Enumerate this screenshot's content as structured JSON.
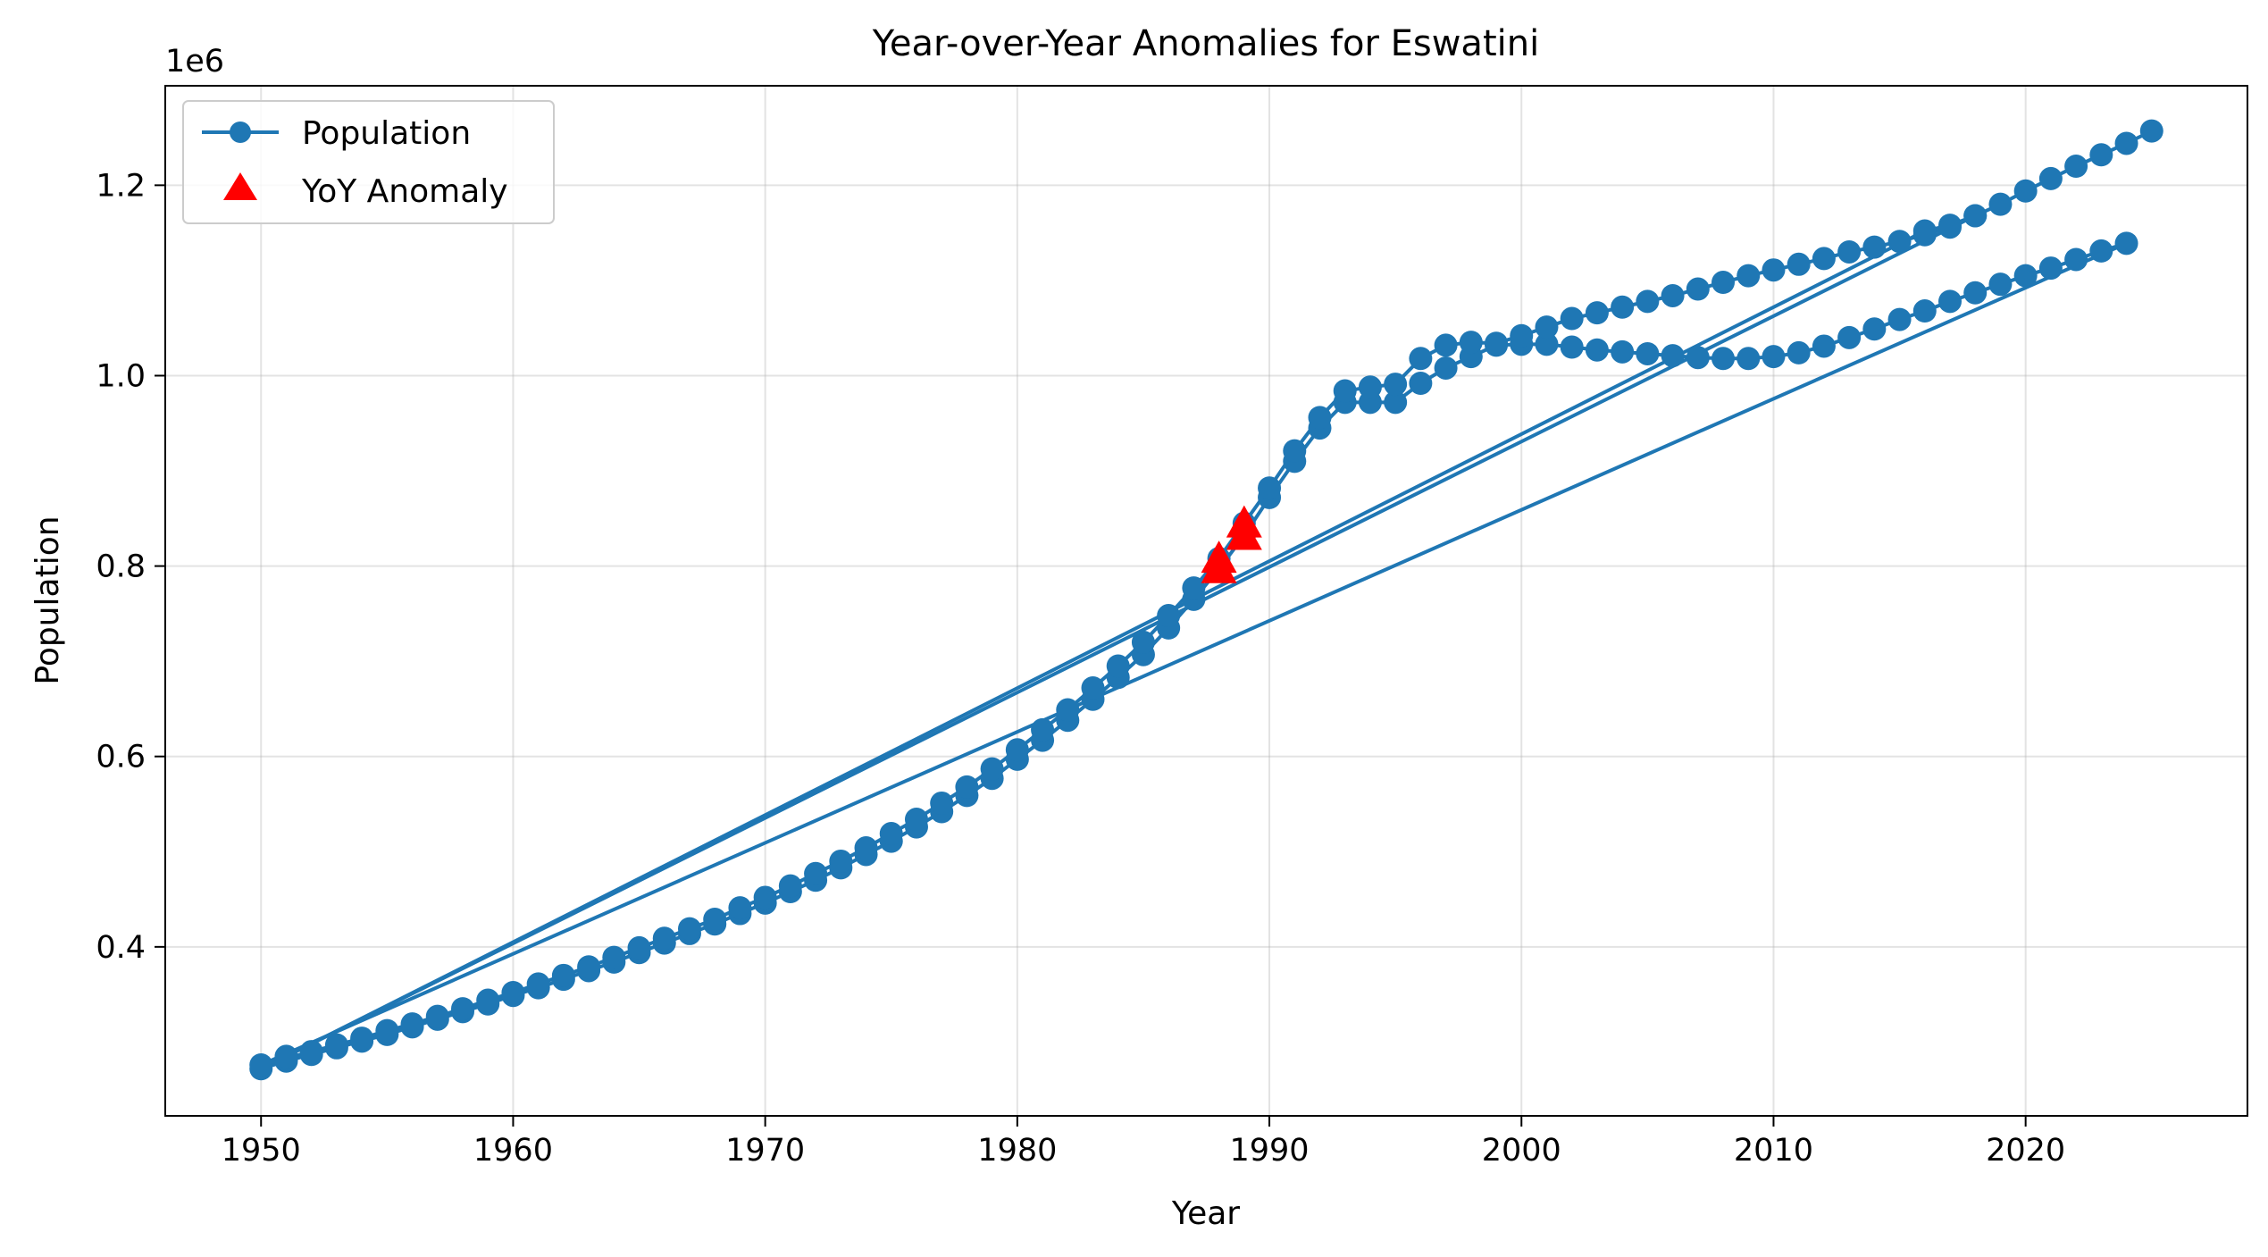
{
  "chart_data": {
    "type": "line",
    "title": "Year-over-Year Anomalies for Eswatini",
    "xlabel": "Year",
    "ylabel": "Population",
    "y_offset_label": "1e6",
    "xlim": [
      1946.2,
      2028.8
    ],
    "ylim": [
      0.2225,
      1.3045
    ],
    "y_scale_factor": 1000000,
    "xticks": [
      1950,
      1960,
      1970,
      1980,
      1990,
      2000,
      2010,
      2020
    ],
    "yticks": [
      0.4,
      0.6,
      0.8,
      1.0,
      1.2
    ],
    "ytick_labels": [
      "0.4",
      "0.6",
      "0.8",
      "1.0",
      "1.2"
    ],
    "grid": true,
    "legend_position": "upper-left",
    "colors": {
      "population": "#1f77b4",
      "anomaly": "#ff0000"
    },
    "series": [
      {
        "name": "Population",
        "marker": "circle",
        "segments": [
          {
            "x": [
              1950,
              1951,
              1952,
              1953,
              1954,
              1955,
              1956,
              1957,
              1958,
              1959,
              1960,
              1961,
              1962,
              1963,
              1964,
              1965,
              1966,
              1967,
              1968,
              1969,
              1970,
              1971,
              1972,
              1973,
              1974,
              1975,
              1976,
              1977,
              1978,
              1979,
              1980,
              1981,
              1982,
              1983,
              1984,
              1985,
              1986,
              1987,
              1988,
              1989,
              1990,
              1991,
              1992,
              1993,
              1994,
              1995,
              1996,
              1997,
              1998,
              1999,
              2000,
              2001,
              2002,
              2003,
              2004,
              2005,
              2006,
              2007,
              2008,
              2009,
              2010,
              2011,
              2012,
              2013,
              2014,
              2015,
              2016,
              2017,
              2018,
              2019,
              2020,
              2021,
              2022,
              2023,
              2024
            ],
            "y": [
              0.272,
              0.28,
              0.287,
              0.294,
              0.301,
              0.308,
              0.316,
              0.324,
              0.332,
              0.34,
              0.349,
              0.357,
              0.366,
              0.375,
              0.384,
              0.394,
              0.404,
              0.414,
              0.424,
              0.435,
              0.446,
              0.458,
              0.47,
              0.483,
              0.497,
              0.511,
              0.526,
              0.542,
              0.559,
              0.577,
              0.597,
              0.617,
              0.638,
              0.66,
              0.683,
              0.707,
              0.735,
              0.765,
              0.797,
              0.832,
              0.872,
              0.91,
              0.945,
              0.972,
              0.972,
              0.972,
              0.992,
              1.008,
              1.02,
              1.032,
              1.033,
              1.033,
              1.03,
              1.027,
              1.025,
              1.023,
              1.021,
              1.019,
              1.018,
              1.018,
              1.02,
              1.024,
              1.031,
              1.04,
              1.049,
              1.059,
              1.068,
              1.078,
              1.087,
              1.096,
              1.105,
              1.113,
              1.122,
              1.131,
              1.139
            ]
          },
          {
            "x": [
              1950,
              1951,
              1952,
              1953,
              1954,
              1955,
              1956,
              1957,
              1958,
              1959,
              1960,
              1961,
              1962,
              1963,
              1964,
              1965,
              1966,
              1967,
              1968,
              1969,
              1970,
              1971,
              1972,
              1973,
              1974,
              1975,
              1976,
              1977,
              1978,
              1979,
              1980,
              1981,
              1982,
              1983,
              1984,
              1985,
              1986,
              1987,
              1988,
              1989,
              1990,
              1991,
              1992,
              1993,
              1994,
              1995,
              1996,
              1997,
              1998,
              1999,
              2000,
              2001,
              2002,
              2003,
              2004,
              2005,
              2006,
              2007,
              2008,
              2009,
              2010,
              2011,
              2012,
              2013,
              2014,
              2015,
              2016,
              2017,
              2018
            ],
            "y": [
              0.276,
              0.283,
              0.29,
              0.297,
              0.304,
              0.312,
              0.319,
              0.327,
              0.335,
              0.344,
              0.352,
              0.361,
              0.37,
              0.379,
              0.389,
              0.399,
              0.409,
              0.419,
              0.429,
              0.441,
              0.452,
              0.464,
              0.477,
              0.49,
              0.504,
              0.519,
              0.534,
              0.551,
              0.568,
              0.587,
              0.607,
              0.628,
              0.649,
              0.672,
              0.695,
              0.72,
              0.748,
              0.777,
              0.808,
              0.845,
              0.882,
              0.921,
              0.956,
              0.984,
              0.988,
              0.991,
              1.018,
              1.032,
              1.035,
              1.034,
              1.042,
              1.051,
              1.06,
              1.066,
              1.072,
              1.078,
              1.084,
              1.091,
              1.098,
              1.105,
              1.111,
              1.117,
              1.123,
              1.13,
              1.135,
              1.141,
              1.148,
              1.156,
              1.168
            ]
          },
          {
            "x": [
              1951,
              2016,
              2017,
              2018,
              2019,
              2020,
              2021,
              2022,
              2023,
              2024,
              2025
            ],
            "y": [
              0.285,
              1.152,
              1.158,
              1.168,
              1.18,
              1.194,
              1.207,
              1.22,
              1.232,
              1.244,
              1.257
            ]
          }
        ]
      },
      {
        "name": "YoY Anomaly",
        "marker": "triangle",
        "points": [
          {
            "x": 1988,
            "y": 0.797
          },
          {
            "x": 1988,
            "y": 0.808
          },
          {
            "x": 1989,
            "y": 0.832
          },
          {
            "x": 1989,
            "y": 0.845
          }
        ]
      }
    ]
  }
}
